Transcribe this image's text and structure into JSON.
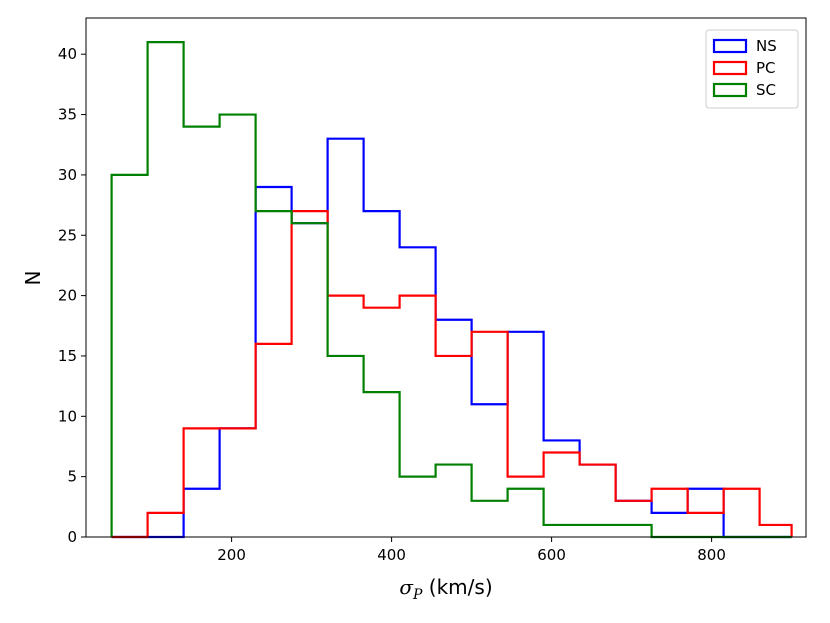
{
  "chart_data": {
    "type": "histogram",
    "bin_edges": [
      50,
      95,
      140,
      185,
      230,
      275,
      320,
      365,
      410,
      455,
      500,
      545,
      590,
      635,
      680,
      725,
      770,
      815,
      860,
      900
    ],
    "series": [
      {
        "name": "NS",
        "color": "#0000ff",
        "counts": [
          0,
          0,
          4,
          9,
          29,
          26,
          33,
          27,
          24,
          18,
          11,
          17,
          8,
          6,
          3,
          2,
          4,
          0,
          0
        ]
      },
      {
        "name": "PC",
        "color": "#ff0000",
        "counts": [
          0,
          2,
          9,
          9,
          16,
          27,
          20,
          19,
          20,
          15,
          17,
          5,
          7,
          6,
          3,
          4,
          2,
          4,
          1
        ]
      },
      {
        "name": "SC",
        "color": "#008000",
        "counts": [
          30,
          41,
          34,
          35,
          27,
          26,
          15,
          12,
          5,
          6,
          3,
          4,
          1,
          1,
          1,
          0,
          0,
          0,
          0
        ]
      }
    ],
    "xlabel_symbol": "σ",
    "xlabel_subscript": "P",
    "xlabel_units": " (km/s)",
    "ylabel": "N",
    "xlim": [
      18,
      918
    ],
    "ylim": [
      0,
      43
    ],
    "xticks": [
      200,
      400,
      600,
      800
    ],
    "yticks": [
      0,
      5,
      10,
      15,
      20,
      25,
      30,
      35,
      40
    ],
    "legend_position": "top-right",
    "grid": false
  }
}
